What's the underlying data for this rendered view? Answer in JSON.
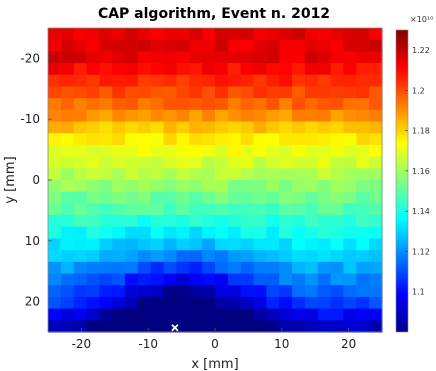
{
  "chart_data": {
    "type": "heatmap",
    "title": "CAP algorithm, Event n. 2012",
    "xlabel": "x [mm]",
    "ylabel": "y [mm]",
    "xlim": [
      -25,
      25
    ],
    "ylim": [
      -25,
      25
    ],
    "y_axis_inverted": true,
    "x_ticks": [
      -20,
      -10,
      0,
      10,
      20
    ],
    "x_tick_labels": [
      "-20",
      "-10",
      "0",
      "10",
      "20"
    ],
    "y_ticks": [
      -20,
      -10,
      0,
      10,
      20
    ],
    "y_tick_labels": [
      "-20",
      "-10",
      "0",
      "10",
      "20"
    ],
    "grid": false,
    "colorscale": "jet",
    "colorbar": {
      "range": [
        1.08,
        1.23
      ],
      "exponent_label": "×10¹⁰",
      "ticks": [
        1.1,
        1.12,
        1.14,
        1.16,
        1.18,
        1.2,
        1.22
      ],
      "tick_labels": [
        "1.1",
        "1.12",
        "1.14",
        "1.16",
        "1.18",
        "1.2",
        "1.22"
      ]
    },
    "y_centers": [
      -24,
      -20,
      -16,
      -12,
      -8,
      -4,
      0,
      4,
      8,
      12,
      16,
      20,
      24
    ],
    "row_profiles": [
      {
        "y": -24,
        "value": 1.215
      },
      {
        "y": -20,
        "value": 1.215
      },
      {
        "y": -16,
        "value": 1.205
      },
      {
        "y": -12,
        "value": 1.195
      },
      {
        "y": -8,
        "value": 1.18
      },
      {
        "y": -4,
        "value": 1.17
      },
      {
        "y": 0,
        "value": 1.16
      },
      {
        "y": 4,
        "value": 1.15
      },
      {
        "y": 8,
        "value": 1.14
      },
      {
        "y": 12,
        "value": 1.13
      },
      {
        "y": 16,
        "value": 1.12
      },
      {
        "y": 20,
        "value": 1.11
      },
      {
        "y": 24,
        "value": 1.09
      }
    ],
    "minimum_center": {
      "x": -5,
      "y": 25
    },
    "marker": {
      "x": -6,
      "y": 24.3,
      "symbol": "x",
      "color": "#ffffff"
    }
  }
}
